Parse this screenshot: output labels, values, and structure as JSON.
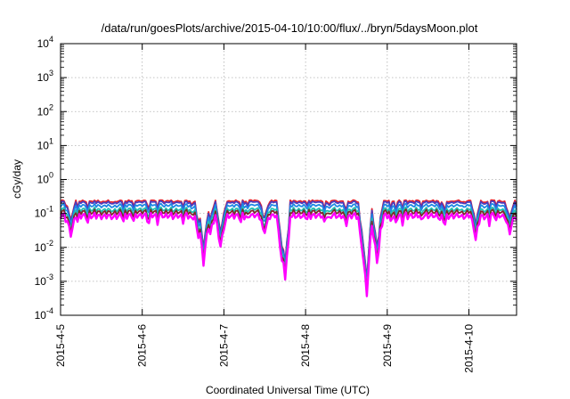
{
  "chart_data": {
    "type": "line",
    "title": "/data/run/goesPlots/archive/2015-04-10/10:00/flux/../bryn/5daysMoon.plot",
    "xlabel": "Coordinated Universal Time (UTC)",
    "ylabel": "cGy/day",
    "yscale": "log",
    "ylim": [
      0.0001,
      10000
    ],
    "xlim": [
      "2015-04-05",
      "2015-04-10 14:00"
    ],
    "grid": true,
    "x_tick_labels": [
      "2015-4-5",
      "2015-4-6",
      "2015-4-7",
      "2015-4-8",
      "2015-4-9",
      "2015-4-10"
    ],
    "y_tick_labels": [
      {
        "base": "10",
        "exp": "4"
      },
      {
        "base": "10",
        "exp": "3"
      },
      {
        "base": "10",
        "exp": "2"
      },
      {
        "base": "10",
        "exp": "1"
      },
      {
        "base": "10",
        "exp": "0"
      },
      {
        "base": "10",
        "exp": "-1"
      },
      {
        "base": "10",
        "exp": "-2"
      },
      {
        "base": "10",
        "exp": "-3"
      },
      {
        "base": "10",
        "exp": "-4"
      }
    ],
    "series": [
      {
        "color": "#e8202a",
        "base": 0.23
      },
      {
        "color": "#4a3dbf",
        "base": 0.21
      },
      {
        "color": "#1e88e5",
        "base": 0.17
      },
      {
        "color": "#20c0b0",
        "base": 0.13
      },
      {
        "color": "#7a2a2a",
        "base": 0.11
      },
      {
        "color": "#ff00ff",
        "base": 0.085
      }
    ],
    "dips": [
      {
        "time": "2015-04-05 03:00",
        "min": 0.03
      },
      {
        "time": "2015-04-06 17:00",
        "min": 0.03
      },
      {
        "time": "2015-04-06 18:00",
        "min": 0.004
      },
      {
        "time": "2015-04-06 20:00",
        "min": 0.03
      },
      {
        "time": "2015-04-06 23:00",
        "min": 0.012
      },
      {
        "time": "2015-04-07 12:00",
        "min": 0.035
      },
      {
        "time": "2015-04-07 17:00",
        "min": 0.005
      },
      {
        "time": "2015-04-07 18:00",
        "min": 0.0016
      },
      {
        "time": "2015-04-08 17:00",
        "min": 0.005
      },
      {
        "time": "2015-04-08 18:00",
        "min": 0.0005
      },
      {
        "time": "2015-04-08 21:00",
        "min": 0.0045
      },
      {
        "time": "2015-04-10 02:00",
        "min": 0.03
      },
      {
        "time": "2015-04-10 12:00",
        "min": 0.035
      }
    ]
  }
}
